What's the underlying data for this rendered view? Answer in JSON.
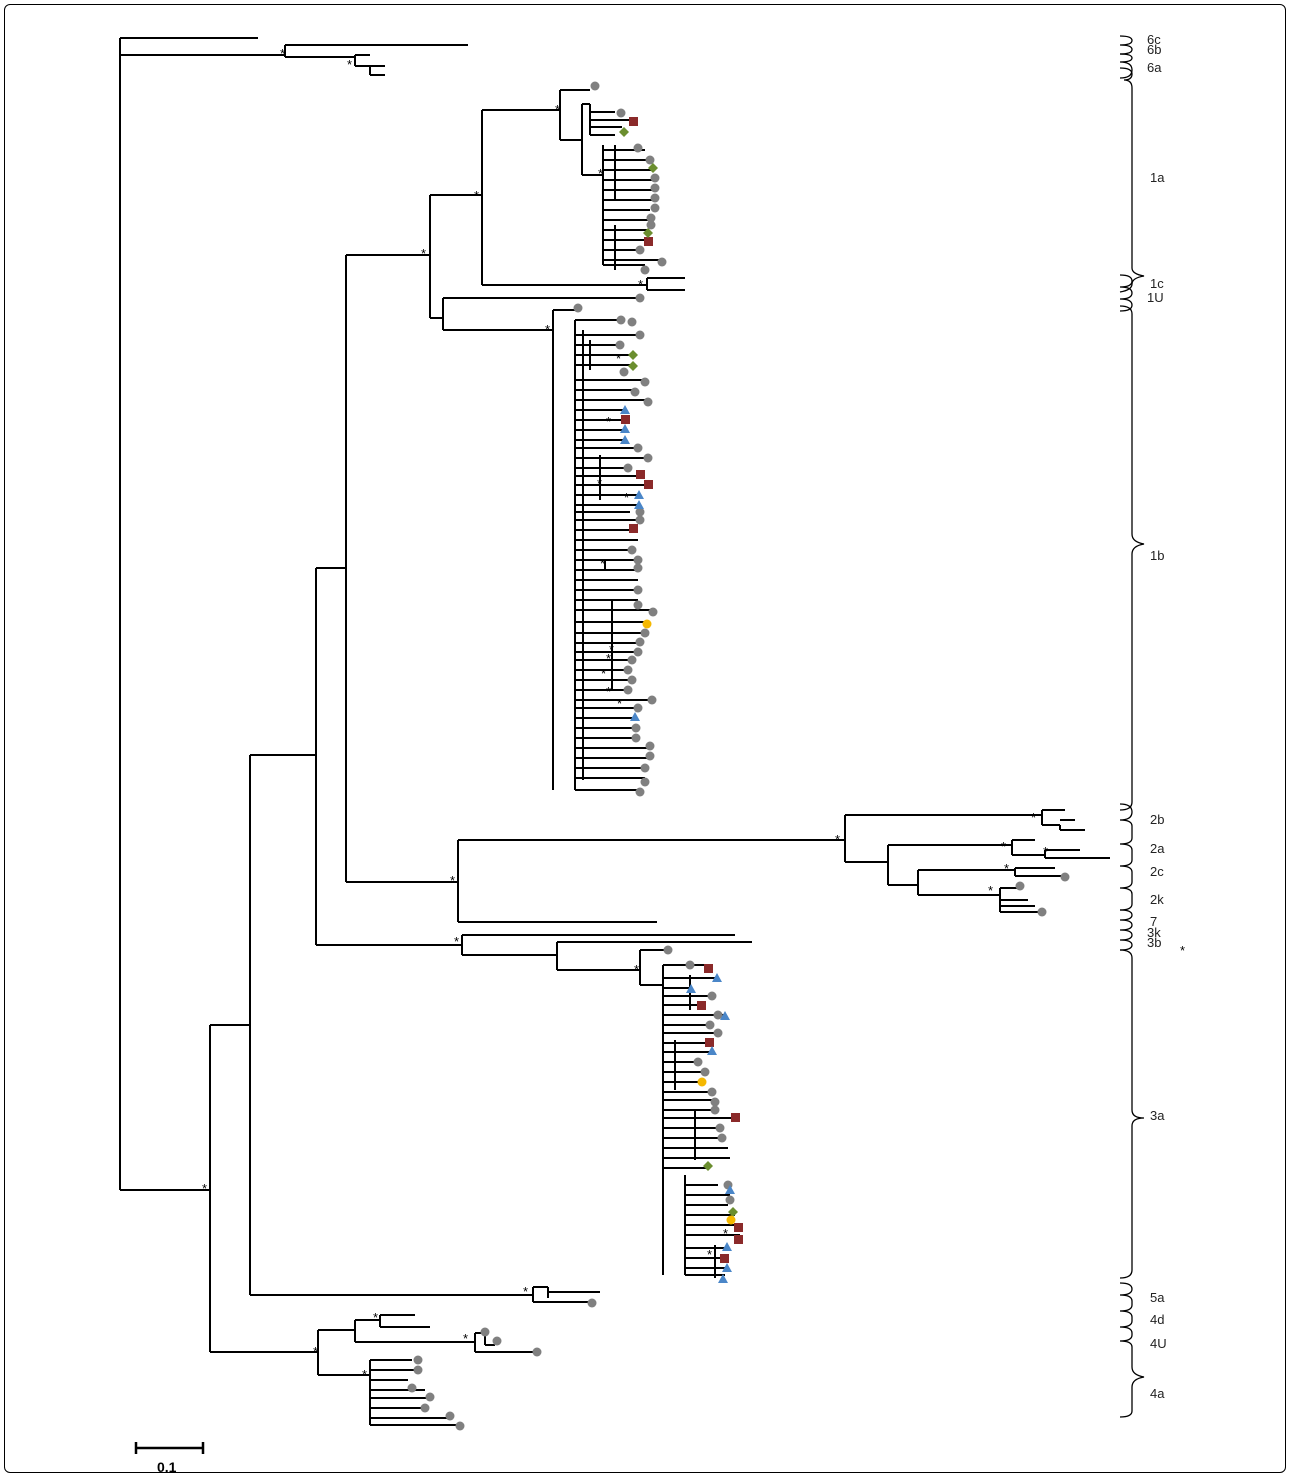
{
  "genotype_labels": [
    "6c",
    "6b",
    "6a",
    "1a",
    "1c",
    "1U",
    "1b",
    "2b",
    "2a",
    "2c",
    "2k",
    "7",
    "3k",
    "3b",
    "3a",
    "5a",
    "4d",
    "4U",
    "4a"
  ],
  "scale_bar": {
    "label": "0.1"
  },
  "support_marker": "*",
  "colors": {
    "branch": "#000000",
    "circle": "#808080",
    "square": "#8b2a2a",
    "diamond": "#6b8e2f",
    "triangle": "#4a86c8",
    "yellow": "#f5b800"
  }
}
